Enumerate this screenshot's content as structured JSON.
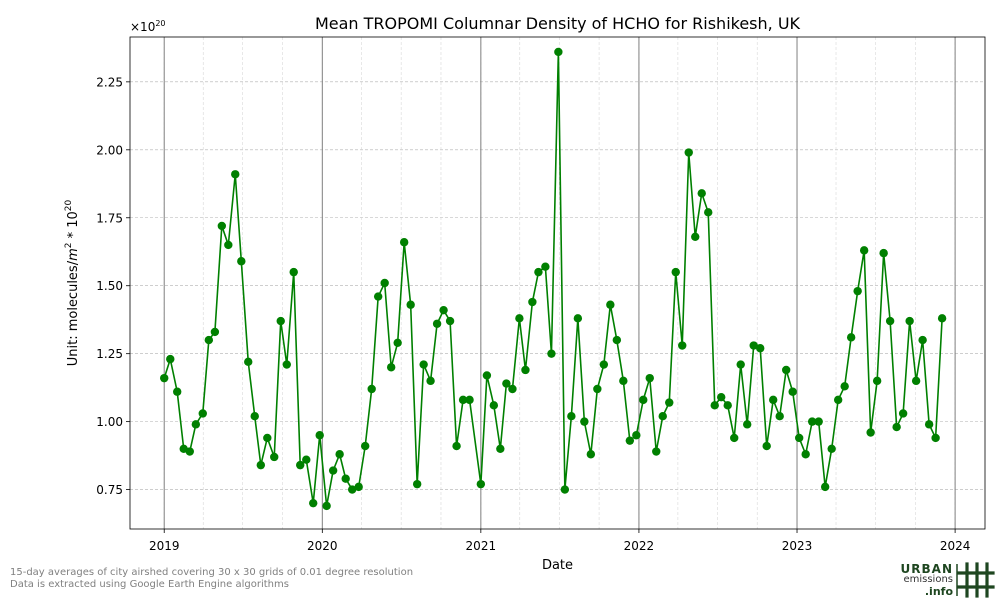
{
  "chart_data": {
    "type": "line",
    "title": "Mean TROPOMI Columnar Density of HCHO for Rishikesh, UK",
    "xlabel": "Date",
    "ylabel_prefix": "Unit: molecules/",
    "ylabel_m": "m",
    "ylabel_exp": "2",
    "ylabel_mid": " * 10",
    "ylabel_exp2": "20",
    "offset_text_base": "×10",
    "offset_text_exp": "20",
    "xlim": [
      "2018-10-14",
      "2024-03-10"
    ],
    "ylim": [
      0.605,
      2.415
    ],
    "x_ticks": [
      {
        "date": "2019-01-01",
        "label": "2019"
      },
      {
        "date": "2020-01-01",
        "label": "2020"
      },
      {
        "date": "2021-01-01",
        "label": "2021"
      },
      {
        "date": "2022-01-01",
        "label": "2022"
      },
      {
        "date": "2023-01-01",
        "label": "2023"
      },
      {
        "date": "2024-01-01",
        "label": "2024"
      }
    ],
    "y_ticks": [
      {
        "value": 0.75,
        "label": "0.75"
      },
      {
        "value": 1.0,
        "label": "1.00"
      },
      {
        "value": 1.25,
        "label": "1.25"
      },
      {
        "value": 1.5,
        "label": "1.50"
      },
      {
        "value": 1.75,
        "label": "1.75"
      },
      {
        "value": 2.0,
        "label": "2.00"
      },
      {
        "value": 2.25,
        "label": "2.25"
      }
    ],
    "grid": true,
    "year_lines": true,
    "series": [
      {
        "color": "#008000",
        "points": [
          {
            "x": "2019-01-01",
            "y": 1.16
          },
          {
            "x": "2019-01-15",
            "y": 1.23
          },
          {
            "x": "2019-01-31",
            "y": 1.11
          },
          {
            "x": "2019-02-15",
            "y": 0.9
          },
          {
            "x": "2019-03-01",
            "y": 0.89
          },
          {
            "x": "2019-03-15",
            "y": 0.99
          },
          {
            "x": "2019-03-31",
            "y": 1.03
          },
          {
            "x": "2019-04-14",
            "y": 1.3
          },
          {
            "x": "2019-04-28",
            "y": 1.33
          },
          {
            "x": "2019-05-14",
            "y": 1.72
          },
          {
            "x": "2019-05-29",
            "y": 1.65
          },
          {
            "x": "2019-06-14",
            "y": 1.91
          },
          {
            "x": "2019-06-28",
            "y": 1.59
          },
          {
            "x": "2019-07-14",
            "y": 1.22
          },
          {
            "x": "2019-07-29",
            "y": 1.02
          },
          {
            "x": "2019-08-12",
            "y": 0.84
          },
          {
            "x": "2019-08-27",
            "y": 0.94
          },
          {
            "x": "2019-09-12",
            "y": 0.87
          },
          {
            "x": "2019-09-27",
            "y": 1.37
          },
          {
            "x": "2019-10-11",
            "y": 1.21
          },
          {
            "x": "2019-10-27",
            "y": 1.55
          },
          {
            "x": "2019-11-11",
            "y": 0.84
          },
          {
            "x": "2019-11-25",
            "y": 0.86
          },
          {
            "x": "2019-12-11",
            "y": 0.7
          },
          {
            "x": "2019-12-26",
            "y": 0.95
          },
          {
            "x": "2020-01-11",
            "y": 0.69
          },
          {
            "x": "2020-01-26",
            "y": 0.82
          },
          {
            "x": "2020-02-10",
            "y": 0.88
          },
          {
            "x": "2020-02-24",
            "y": 0.79
          },
          {
            "x": "2020-03-10",
            "y": 0.75
          },
          {
            "x": "2020-03-25",
            "y": 0.76
          },
          {
            "x": "2020-04-09",
            "y": 0.91
          },
          {
            "x": "2020-04-24",
            "y": 1.12
          },
          {
            "x": "2020-05-09",
            "y": 1.46
          },
          {
            "x": "2020-05-24",
            "y": 1.51
          },
          {
            "x": "2020-06-08",
            "y": 1.2
          },
          {
            "x": "2020-06-23",
            "y": 1.29
          },
          {
            "x": "2020-07-08",
            "y": 1.66
          },
          {
            "x": "2020-07-23",
            "y": 1.43
          },
          {
            "x": "2020-08-07",
            "y": 0.77
          },
          {
            "x": "2020-08-22",
            "y": 1.21
          },
          {
            "x": "2020-09-07",
            "y": 1.15
          },
          {
            "x": "2020-09-22",
            "y": 1.36
          },
          {
            "x": "2020-10-07",
            "y": 1.41
          },
          {
            "x": "2020-10-22",
            "y": 1.37
          },
          {
            "x": "2020-11-06",
            "y": 0.91
          },
          {
            "x": "2020-11-21",
            "y": 1.08
          },
          {
            "x": "2020-12-06",
            "y": 1.08
          },
          {
            "x": "2021-01-01",
            "y": 0.77
          },
          {
            "x": "2021-01-15",
            "y": 1.17
          },
          {
            "x": "2021-01-31",
            "y": 1.06
          },
          {
            "x": "2021-02-15",
            "y": 0.9
          },
          {
            "x": "2021-03-01",
            "y": 1.14
          },
          {
            "x": "2021-03-15",
            "y": 1.12
          },
          {
            "x": "2021-03-31",
            "y": 1.38
          },
          {
            "x": "2021-04-14",
            "y": 1.19
          },
          {
            "x": "2021-04-30",
            "y": 1.44
          },
          {
            "x": "2021-05-14",
            "y": 1.55
          },
          {
            "x": "2021-05-30",
            "y": 1.57
          },
          {
            "x": "2021-06-13",
            "y": 1.25
          },
          {
            "x": "2021-06-29",
            "y": 2.36
          },
          {
            "x": "2021-07-14",
            "y": 0.75
          },
          {
            "x": "2021-07-29",
            "y": 1.02
          },
          {
            "x": "2021-08-13",
            "y": 1.38
          },
          {
            "x": "2021-08-28",
            "y": 1.0
          },
          {
            "x": "2021-09-12",
            "y": 0.88
          },
          {
            "x": "2021-09-27",
            "y": 1.12
          },
          {
            "x": "2021-10-12",
            "y": 1.21
          },
          {
            "x": "2021-10-27",
            "y": 1.43
          },
          {
            "x": "2021-11-11",
            "y": 1.3
          },
          {
            "x": "2021-11-26",
            "y": 1.15
          },
          {
            "x": "2021-12-11",
            "y": 0.93
          },
          {
            "x": "2021-12-26",
            "y": 0.95
          },
          {
            "x": "2022-01-11",
            "y": 1.08
          },
          {
            "x": "2022-01-26",
            "y": 1.16
          },
          {
            "x": "2022-02-10",
            "y": 0.89
          },
          {
            "x": "2022-02-25",
            "y": 1.02
          },
          {
            "x": "2022-03-12",
            "y": 1.07
          },
          {
            "x": "2022-03-27",
            "y": 1.55
          },
          {
            "x": "2022-04-11",
            "y": 1.28
          },
          {
            "x": "2022-04-26",
            "y": 1.99
          },
          {
            "x": "2022-05-11",
            "y": 1.68
          },
          {
            "x": "2022-05-26",
            "y": 1.84
          },
          {
            "x": "2022-06-10",
            "y": 1.77
          },
          {
            "x": "2022-06-25",
            "y": 1.06
          },
          {
            "x": "2022-07-10",
            "y": 1.09
          },
          {
            "x": "2022-07-25",
            "y": 1.06
          },
          {
            "x": "2022-08-09",
            "y": 0.94
          },
          {
            "x": "2022-08-24",
            "y": 1.21
          },
          {
            "x": "2022-09-08",
            "y": 0.99
          },
          {
            "x": "2022-09-23",
            "y": 1.28
          },
          {
            "x": "2022-10-08",
            "y": 1.27
          },
          {
            "x": "2022-10-23",
            "y": 0.91
          },
          {
            "x": "2022-11-07",
            "y": 1.08
          },
          {
            "x": "2022-11-22",
            "y": 1.02
          },
          {
            "x": "2022-12-07",
            "y": 1.19
          },
          {
            "x": "2022-12-22",
            "y": 1.11
          },
          {
            "x": "2023-01-06",
            "y": 0.94
          },
          {
            "x": "2023-01-21",
            "y": 0.88
          },
          {
            "x": "2023-02-05",
            "y": 1.0
          },
          {
            "x": "2023-02-20",
            "y": 1.0
          },
          {
            "x": "2023-03-07",
            "y": 0.76
          },
          {
            "x": "2023-03-22",
            "y": 0.9
          },
          {
            "x": "2023-04-06",
            "y": 1.08
          },
          {
            "x": "2023-04-21",
            "y": 1.13
          },
          {
            "x": "2023-05-06",
            "y": 1.31
          },
          {
            "x": "2023-05-21",
            "y": 1.48
          },
          {
            "x": "2023-06-05",
            "y": 1.63
          },
          {
            "x": "2023-06-20",
            "y": 0.96
          },
          {
            "x": "2023-07-05",
            "y": 1.15
          },
          {
            "x": "2023-07-20",
            "y": 1.62
          },
          {
            "x": "2023-08-04",
            "y": 1.37
          },
          {
            "x": "2023-08-19",
            "y": 0.98
          },
          {
            "x": "2023-09-03",
            "y": 1.03
          },
          {
            "x": "2023-09-18",
            "y": 1.37
          },
          {
            "x": "2023-10-03",
            "y": 1.15
          },
          {
            "x": "2023-10-18",
            "y": 1.3
          },
          {
            "x": "2023-11-02",
            "y": 0.99
          },
          {
            "x": "2023-11-17",
            "y": 0.94
          },
          {
            "x": "2023-12-02",
            "y": 1.38
          }
        ]
      }
    ]
  },
  "footnotes": {
    "line1": "15-day averages of city airshed covering 30 x 30 grids of 0.01 degree resolution",
    "line2": "Data is extracted using Google Earth Engine algorithms"
  },
  "logo": {
    "word1": "URBAN",
    "word2": "emissions",
    "word3": ".info",
    "color": "#1e4620"
  }
}
